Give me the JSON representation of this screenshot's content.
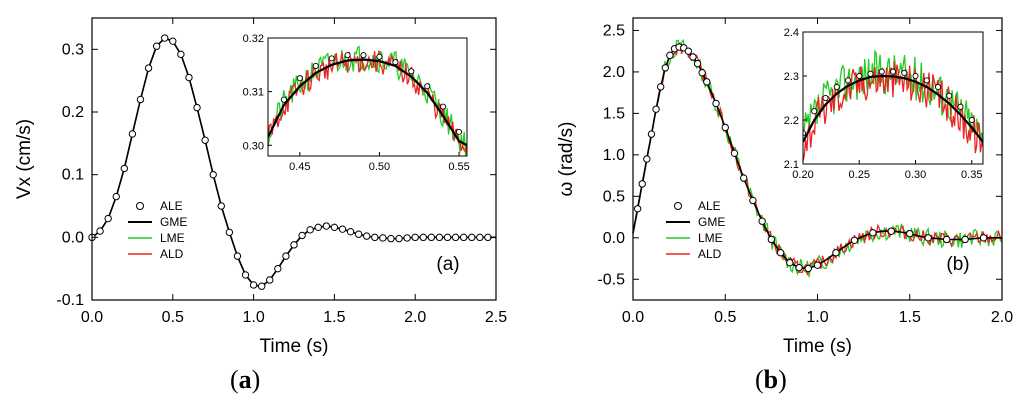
{
  "figure": {
    "caption_a": {
      "open": "(",
      "letter": "a",
      "close": ")"
    },
    "caption_b": {
      "open": "(",
      "letter": "b",
      "close": ")"
    }
  },
  "chart_data": [
    {
      "id": "a",
      "type": "line",
      "panel_label": "(a)",
      "xlabel": "Time (s)",
      "ylabel": "Vx (cm/s)",
      "xlim": [
        0,
        2.5
      ],
      "ylim": [
        -0.1,
        0.35
      ],
      "xticks": [
        "0.0",
        "0.5",
        "1.0",
        "1.5",
        "2.0",
        "2.5"
      ],
      "xtick_values": [
        0,
        0.5,
        1.0,
        1.5,
        2.0,
        2.5
      ],
      "yticks": [
        "-0.1",
        "0.0",
        "0.1",
        "0.2",
        "0.3"
      ],
      "ytick_values": [
        -0.1,
        0,
        0.1,
        0.2,
        0.3
      ],
      "legend": [
        "ALE",
        "GME",
        "LME",
        "ALD"
      ],
      "legend_position": "lower-left",
      "colors": {
        "ALE": "#000000",
        "GME": "#000000",
        "LME": "#22cc22",
        "ALD": "#ee2222"
      },
      "series": [
        {
          "name": "GME",
          "x": [
            0.0,
            0.05,
            0.1,
            0.15,
            0.2,
            0.25,
            0.3,
            0.35,
            0.4,
            0.45,
            0.5,
            0.55,
            0.6,
            0.65,
            0.7,
            0.75,
            0.8,
            0.85,
            0.9,
            0.95,
            1.0,
            1.05,
            1.1,
            1.15,
            1.2,
            1.25,
            1.3,
            1.35,
            1.4,
            1.45,
            1.5,
            1.55,
            1.6,
            1.65,
            1.7,
            1.75,
            1.8,
            1.85,
            1.9,
            1.95,
            2.0,
            2.1,
            2.2,
            2.3,
            2.4,
            2.5
          ],
          "values": [
            0.0,
            0.01,
            0.03,
            0.065,
            0.11,
            0.165,
            0.22,
            0.27,
            0.305,
            0.318,
            0.313,
            0.292,
            0.255,
            0.207,
            0.155,
            0.1,
            0.05,
            0.008,
            -0.03,
            -0.06,
            -0.076,
            -0.078,
            -0.068,
            -0.05,
            -0.03,
            -0.012,
            0.003,
            0.012,
            0.016,
            0.018,
            0.016,
            0.013,
            0.009,
            0.005,
            0.002,
            0.0,
            -0.001,
            -0.002,
            -0.002,
            -0.001,
            0.0,
            0.0,
            0.0,
            0.0,
            0.0,
            0.0
          ]
        },
        {
          "name": "ALE",
          "x": [
            0.0,
            0.05,
            0.1,
            0.15,
            0.2,
            0.25,
            0.3,
            0.35,
            0.4,
            0.45,
            0.5,
            0.55,
            0.6,
            0.65,
            0.7,
            0.75,
            0.8,
            0.85,
            0.9,
            0.95,
            1.0,
            1.05,
            1.1,
            1.15,
            1.2,
            1.25,
            1.3,
            1.35,
            1.4,
            1.45,
            1.5,
            1.55,
            1.6,
            1.65,
            1.7,
            1.75,
            1.8,
            1.85,
            1.9,
            1.95,
            2.0,
            2.05,
            2.1,
            2.15,
            2.2,
            2.25,
            2.3,
            2.35,
            2.4,
            2.45
          ],
          "values": [
            0.0,
            0.01,
            0.03,
            0.065,
            0.11,
            0.165,
            0.22,
            0.27,
            0.305,
            0.318,
            0.313,
            0.292,
            0.255,
            0.207,
            0.155,
            0.1,
            0.05,
            0.008,
            -0.03,
            -0.06,
            -0.076,
            -0.078,
            -0.068,
            -0.05,
            -0.03,
            -0.012,
            0.003,
            0.012,
            0.016,
            0.018,
            0.016,
            0.013,
            0.009,
            0.005,
            0.002,
            0.0,
            -0.001,
            -0.002,
            -0.002,
            -0.001,
            0.0,
            0.0,
            0.0,
            0.0,
            0.0,
            0.0,
            0.0,
            0.0,
            0.0,
            0.0
          ]
        }
      ],
      "inset": {
        "xlim": [
          0.43,
          0.555
        ],
        "ylim": [
          0.298,
          0.32
        ],
        "xticks": [
          "0.45",
          "0.50",
          "0.55"
        ],
        "xtick_values": [
          0.45,
          0.5,
          0.55
        ],
        "yticks": [
          "0.30",
          "0.31",
          "0.32"
        ],
        "ytick_values": [
          0.3,
          0.31,
          0.32
        ],
        "curve_x": [
          0.43,
          0.44,
          0.45,
          0.46,
          0.47,
          0.48,
          0.49,
          0.5,
          0.51,
          0.52,
          0.53,
          0.54,
          0.55,
          0.555
        ],
        "curve_values": [
          0.3015,
          0.3075,
          0.311,
          0.3135,
          0.315,
          0.3158,
          0.316,
          0.3157,
          0.3148,
          0.3128,
          0.3098,
          0.3055,
          0.3008,
          0.3
        ],
        "markers_x": [
          0.44,
          0.45,
          0.46,
          0.47,
          0.48,
          0.49,
          0.5,
          0.51,
          0.52,
          0.53,
          0.54,
          0.55
        ],
        "markers_values": [
          0.3085,
          0.3125,
          0.3148,
          0.3162,
          0.3168,
          0.3168,
          0.3165,
          0.3155,
          0.3138,
          0.311,
          0.3072,
          0.3025
        ]
      }
    },
    {
      "id": "b",
      "type": "line",
      "panel_label": "(b)",
      "xlabel": "Time (s)",
      "ylabel": "ω (rad/s)",
      "xlim": [
        0,
        2.0
      ],
      "ylim": [
        -0.75,
        2.65
      ],
      "xticks": [
        "0.0",
        "0.5",
        "1.0",
        "1.5",
        "2.0"
      ],
      "xtick_values": [
        0,
        0.5,
        1.0,
        1.5,
        2.0
      ],
      "yticks": [
        "-0.5",
        "0.0",
        "0.5",
        "1.0",
        "1.5",
        "2.0",
        "2.5"
      ],
      "ytick_values": [
        -0.5,
        0,
        0.5,
        1.0,
        1.5,
        2.0,
        2.5
      ],
      "legend": [
        "ALE",
        "GME",
        "LME",
        "ALD"
      ],
      "legend_position": "lower-left",
      "colors": {
        "ALE": "#000000",
        "GME": "#000000",
        "LME": "#22cc22",
        "ALD": "#ee2222"
      },
      "series": [
        {
          "name": "GME",
          "x": [
            0.0,
            0.025,
            0.05,
            0.075,
            0.1,
            0.125,
            0.15,
            0.175,
            0.2,
            0.225,
            0.25,
            0.275,
            0.3,
            0.325,
            0.35,
            0.375,
            0.4,
            0.45,
            0.5,
            0.55,
            0.6,
            0.65,
            0.7,
            0.75,
            0.8,
            0.85,
            0.9,
            0.95,
            1.0,
            1.05,
            1.1,
            1.15,
            1.2,
            1.25,
            1.3,
            1.35,
            1.4,
            1.45,
            1.5,
            1.55,
            1.6,
            1.65,
            1.7,
            1.75,
            1.8,
            1.85,
            1.9,
            1.95,
            2.0
          ],
          "values": [
            0.05,
            0.35,
            0.65,
            0.95,
            1.25,
            1.55,
            1.82,
            2.05,
            2.2,
            2.28,
            2.3,
            2.29,
            2.25,
            2.18,
            2.1,
            1.99,
            1.88,
            1.62,
            1.33,
            1.02,
            0.72,
            0.45,
            0.2,
            -0.02,
            -0.18,
            -0.3,
            -0.36,
            -0.37,
            -0.33,
            -0.26,
            -0.18,
            -0.1,
            -0.03,
            0.02,
            0.06,
            0.08,
            0.08,
            0.07,
            0.05,
            0.02,
            0.0,
            -0.01,
            -0.02,
            -0.02,
            -0.02,
            -0.01,
            0.0,
            0.0,
            0.0
          ]
        },
        {
          "name": "ALE",
          "x": [
            0.025,
            0.05,
            0.075,
            0.1,
            0.125,
            0.15,
            0.175,
            0.2,
            0.225,
            0.25,
            0.275,
            0.3,
            0.325,
            0.35,
            0.375,
            0.4,
            0.45,
            0.5,
            0.55,
            0.6,
            0.65,
            0.7,
            0.75,
            0.8,
            0.85,
            0.9,
            0.95,
            1.0,
            1.1,
            1.2,
            1.3,
            1.4,
            1.5,
            1.6,
            1.7,
            1.8,
            1.9
          ],
          "values": [
            0.35,
            0.65,
            0.95,
            1.25,
            1.55,
            1.82,
            2.05,
            2.2,
            2.28,
            2.3,
            2.29,
            2.25,
            2.18,
            2.1,
            1.99,
            1.88,
            1.62,
            1.33,
            1.02,
            0.72,
            0.45,
            0.2,
            -0.02,
            -0.18,
            -0.3,
            -0.36,
            -0.37,
            -0.33,
            -0.18,
            -0.03,
            0.06,
            0.08,
            0.05,
            0.0,
            -0.02,
            -0.02,
            0.0
          ]
        }
      ],
      "inset": {
        "xlim": [
          0.2,
          0.36
        ],
        "ylim": [
          2.1,
          2.4
        ],
        "xticks": [
          "0.20",
          "0.25",
          "0.30",
          "0.35"
        ],
        "xtick_values": [
          0.2,
          0.25,
          0.3,
          0.35
        ],
        "yticks": [
          "2.1",
          "2.2",
          "2.3",
          "2.4"
        ],
        "ytick_values": [
          2.1,
          2.2,
          2.3,
          2.4
        ],
        "curve_x": [
          0.2,
          0.21,
          0.22,
          0.23,
          0.24,
          0.25,
          0.26,
          0.27,
          0.28,
          0.29,
          0.3,
          0.31,
          0.32,
          0.33,
          0.34,
          0.35,
          0.36
        ],
        "curve_values": [
          2.15,
          2.2,
          2.235,
          2.26,
          2.278,
          2.29,
          2.298,
          2.3,
          2.299,
          2.295,
          2.287,
          2.275,
          2.258,
          2.237,
          2.212,
          2.183,
          2.15
        ],
        "markers_x": [
          0.2,
          0.21,
          0.22,
          0.23,
          0.24,
          0.25,
          0.26,
          0.27,
          0.28,
          0.29,
          0.3,
          0.31,
          0.32,
          0.33,
          0.34,
          0.35
        ],
        "markers_values": [
          2.17,
          2.22,
          2.25,
          2.275,
          2.29,
          2.3,
          2.305,
          2.31,
          2.31,
          2.307,
          2.3,
          2.29,
          2.275,
          2.255,
          2.23,
          2.2
        ]
      }
    }
  ]
}
